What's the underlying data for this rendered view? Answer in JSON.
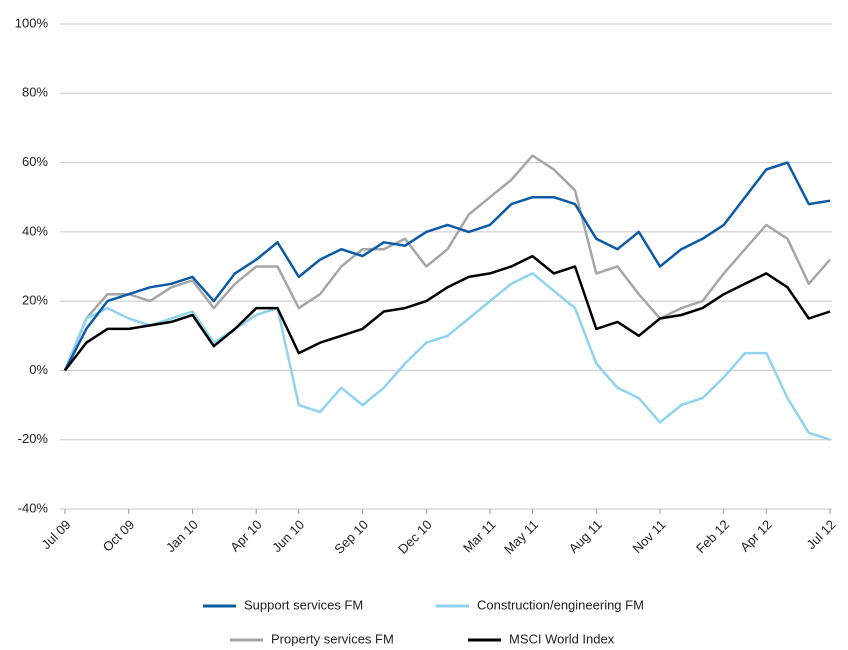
{
  "chart_data": {
    "type": "line",
    "categories": [
      "Jul 09",
      null,
      null,
      "Oct 09",
      null,
      null,
      "Jan 10",
      null,
      null,
      "Apr 10",
      null,
      "Jun 10",
      null,
      null,
      "Sep 10",
      null,
      null,
      "Dec 10",
      null,
      null,
      "Mar 11",
      null,
      "May 11",
      null,
      null,
      "Aug 11",
      null,
      null,
      "Nov 11",
      null,
      null,
      "Feb 12",
      null,
      "Apr 12",
      null,
      null,
      "Jul 12"
    ],
    "series": [
      {
        "name": "Support services FM",
        "color": "#0b5aa6",
        "values": [
          0,
          12,
          20,
          22,
          24,
          25,
          27,
          20,
          28,
          32,
          37,
          27,
          32,
          35,
          33,
          37,
          36,
          40,
          42,
          40,
          42,
          48,
          50,
          50,
          48,
          38,
          35,
          40,
          30,
          35,
          38,
          42,
          50,
          58,
          60,
          48,
          49
        ]
      },
      {
        "name": "Construction/engineering FM",
        "color": "#8fd3f0",
        "values": [
          0,
          15,
          18,
          15,
          13,
          15,
          17,
          8,
          12,
          16,
          18,
          -10,
          -12,
          -5,
          -10,
          -5,
          2,
          8,
          10,
          15,
          20,
          25,
          28,
          23,
          18,
          2,
          -5,
          -8,
          -15,
          -10,
          -8,
          -2,
          5,
          5,
          -8,
          -18,
          -20
        ]
      },
      {
        "name": "Property services FM",
        "color": "#a6a6a6",
        "values": [
          0,
          15,
          22,
          22,
          20,
          24,
          26,
          18,
          25,
          30,
          30,
          18,
          22,
          30,
          35,
          35,
          38,
          30,
          35,
          45,
          50,
          55,
          62,
          58,
          52,
          28,
          30,
          22,
          15,
          18,
          20,
          28,
          35,
          42,
          38,
          25,
          32
        ]
      },
      {
        "name": "MSCI World Index",
        "color": "#000000",
        "values": [
          0,
          8,
          12,
          12,
          13,
          14,
          16,
          7,
          12,
          18,
          18,
          5,
          8,
          10,
          12,
          17,
          18,
          20,
          24,
          27,
          28,
          30,
          33,
          28,
          30,
          12,
          14,
          10,
          15,
          16,
          18,
          22,
          25,
          28,
          24,
          15,
          17
        ]
      }
    ],
    "ylim": [
      -40,
      100
    ],
    "yticks": [
      {
        "value": -40,
        "label": "-40%"
      },
      {
        "value": -20,
        "label": "-20%"
      },
      {
        "value": 0,
        "label": "0%"
      },
      {
        "value": 20,
        "label": "20%"
      },
      {
        "value": 40,
        "label": "40%"
      },
      {
        "value": 60,
        "label": "60%"
      },
      {
        "value": 80,
        "label": "80%"
      },
      {
        "value": 100,
        "label": "100%"
      }
    ],
    "grid": true,
    "legend": "bottom"
  }
}
